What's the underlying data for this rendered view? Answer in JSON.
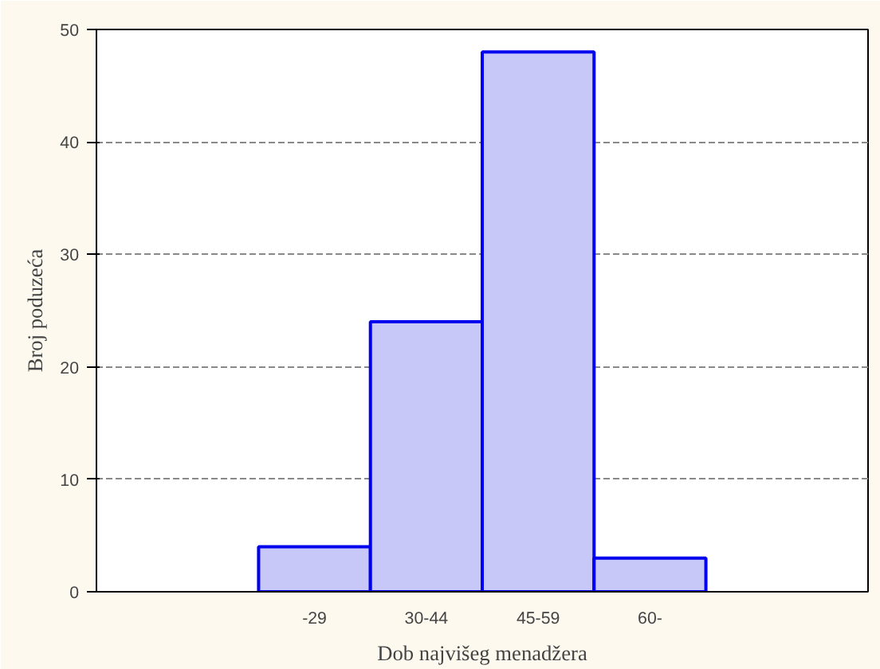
{
  "chart_data": {
    "type": "bar",
    "xlabel": "Dob najvišeg menadžera",
    "ylabel": "Broj poduzeća",
    "categories": [
      null,
      "-29",
      "30-44",
      "45-59",
      "60-",
      null
    ],
    "values": [
      null,
      4,
      24,
      48,
      3,
      null
    ],
    "color": "#c8c8f8",
    "ylim": [
      0,
      50
    ],
    "yticks": [
      0,
      10,
      20,
      30,
      40,
      50
    ],
    "grid": "y"
  }
}
